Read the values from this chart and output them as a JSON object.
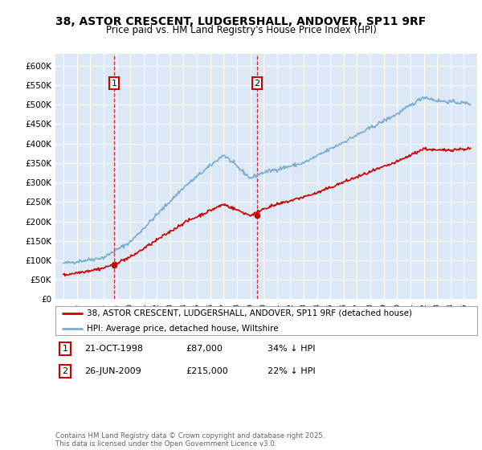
{
  "title": "38, ASTOR CRESCENT, LUDGERSHALL, ANDOVER, SP11 9RF",
  "subtitle": "Price paid vs. HM Land Registry's House Price Index (HPI)",
  "ylabel_ticks": [
    "£0",
    "£50K",
    "£100K",
    "£150K",
    "£200K",
    "£250K",
    "£300K",
    "£350K",
    "£400K",
    "£450K",
    "£500K",
    "£550K",
    "£600K"
  ],
  "ytick_values": [
    0,
    50000,
    100000,
    150000,
    200000,
    250000,
    300000,
    350000,
    400000,
    450000,
    500000,
    550000,
    600000
  ],
  "legend_line1": "38, ASTOR CRESCENT, LUDGERSHALL, ANDOVER, SP11 9RF (detached house)",
  "legend_line2": "HPI: Average price, detached house, Wiltshire",
  "transaction1_date": "21-OCT-1998",
  "transaction1_price": "£87,000",
  "transaction1_hpi": "34% ↓ HPI",
  "transaction1_year": 1998.8,
  "transaction1_value": 87000,
  "transaction2_date": "26-JUN-2009",
  "transaction2_price": "£215,000",
  "transaction2_hpi": "22% ↓ HPI",
  "transaction2_year": 2009.5,
  "transaction2_value": 215000,
  "footnote": "Contains HM Land Registry data © Crown copyright and database right 2025.\nThis data is licensed under the Open Government Licence v3.0.",
  "line_color_red": "#cc0000",
  "line_color_blue": "#7aadcf",
  "background_plot": "#dce8f5",
  "background_fig": "#ffffff",
  "grid_color": "#ffffff",
  "transaction_box_color": "#cc0000"
}
